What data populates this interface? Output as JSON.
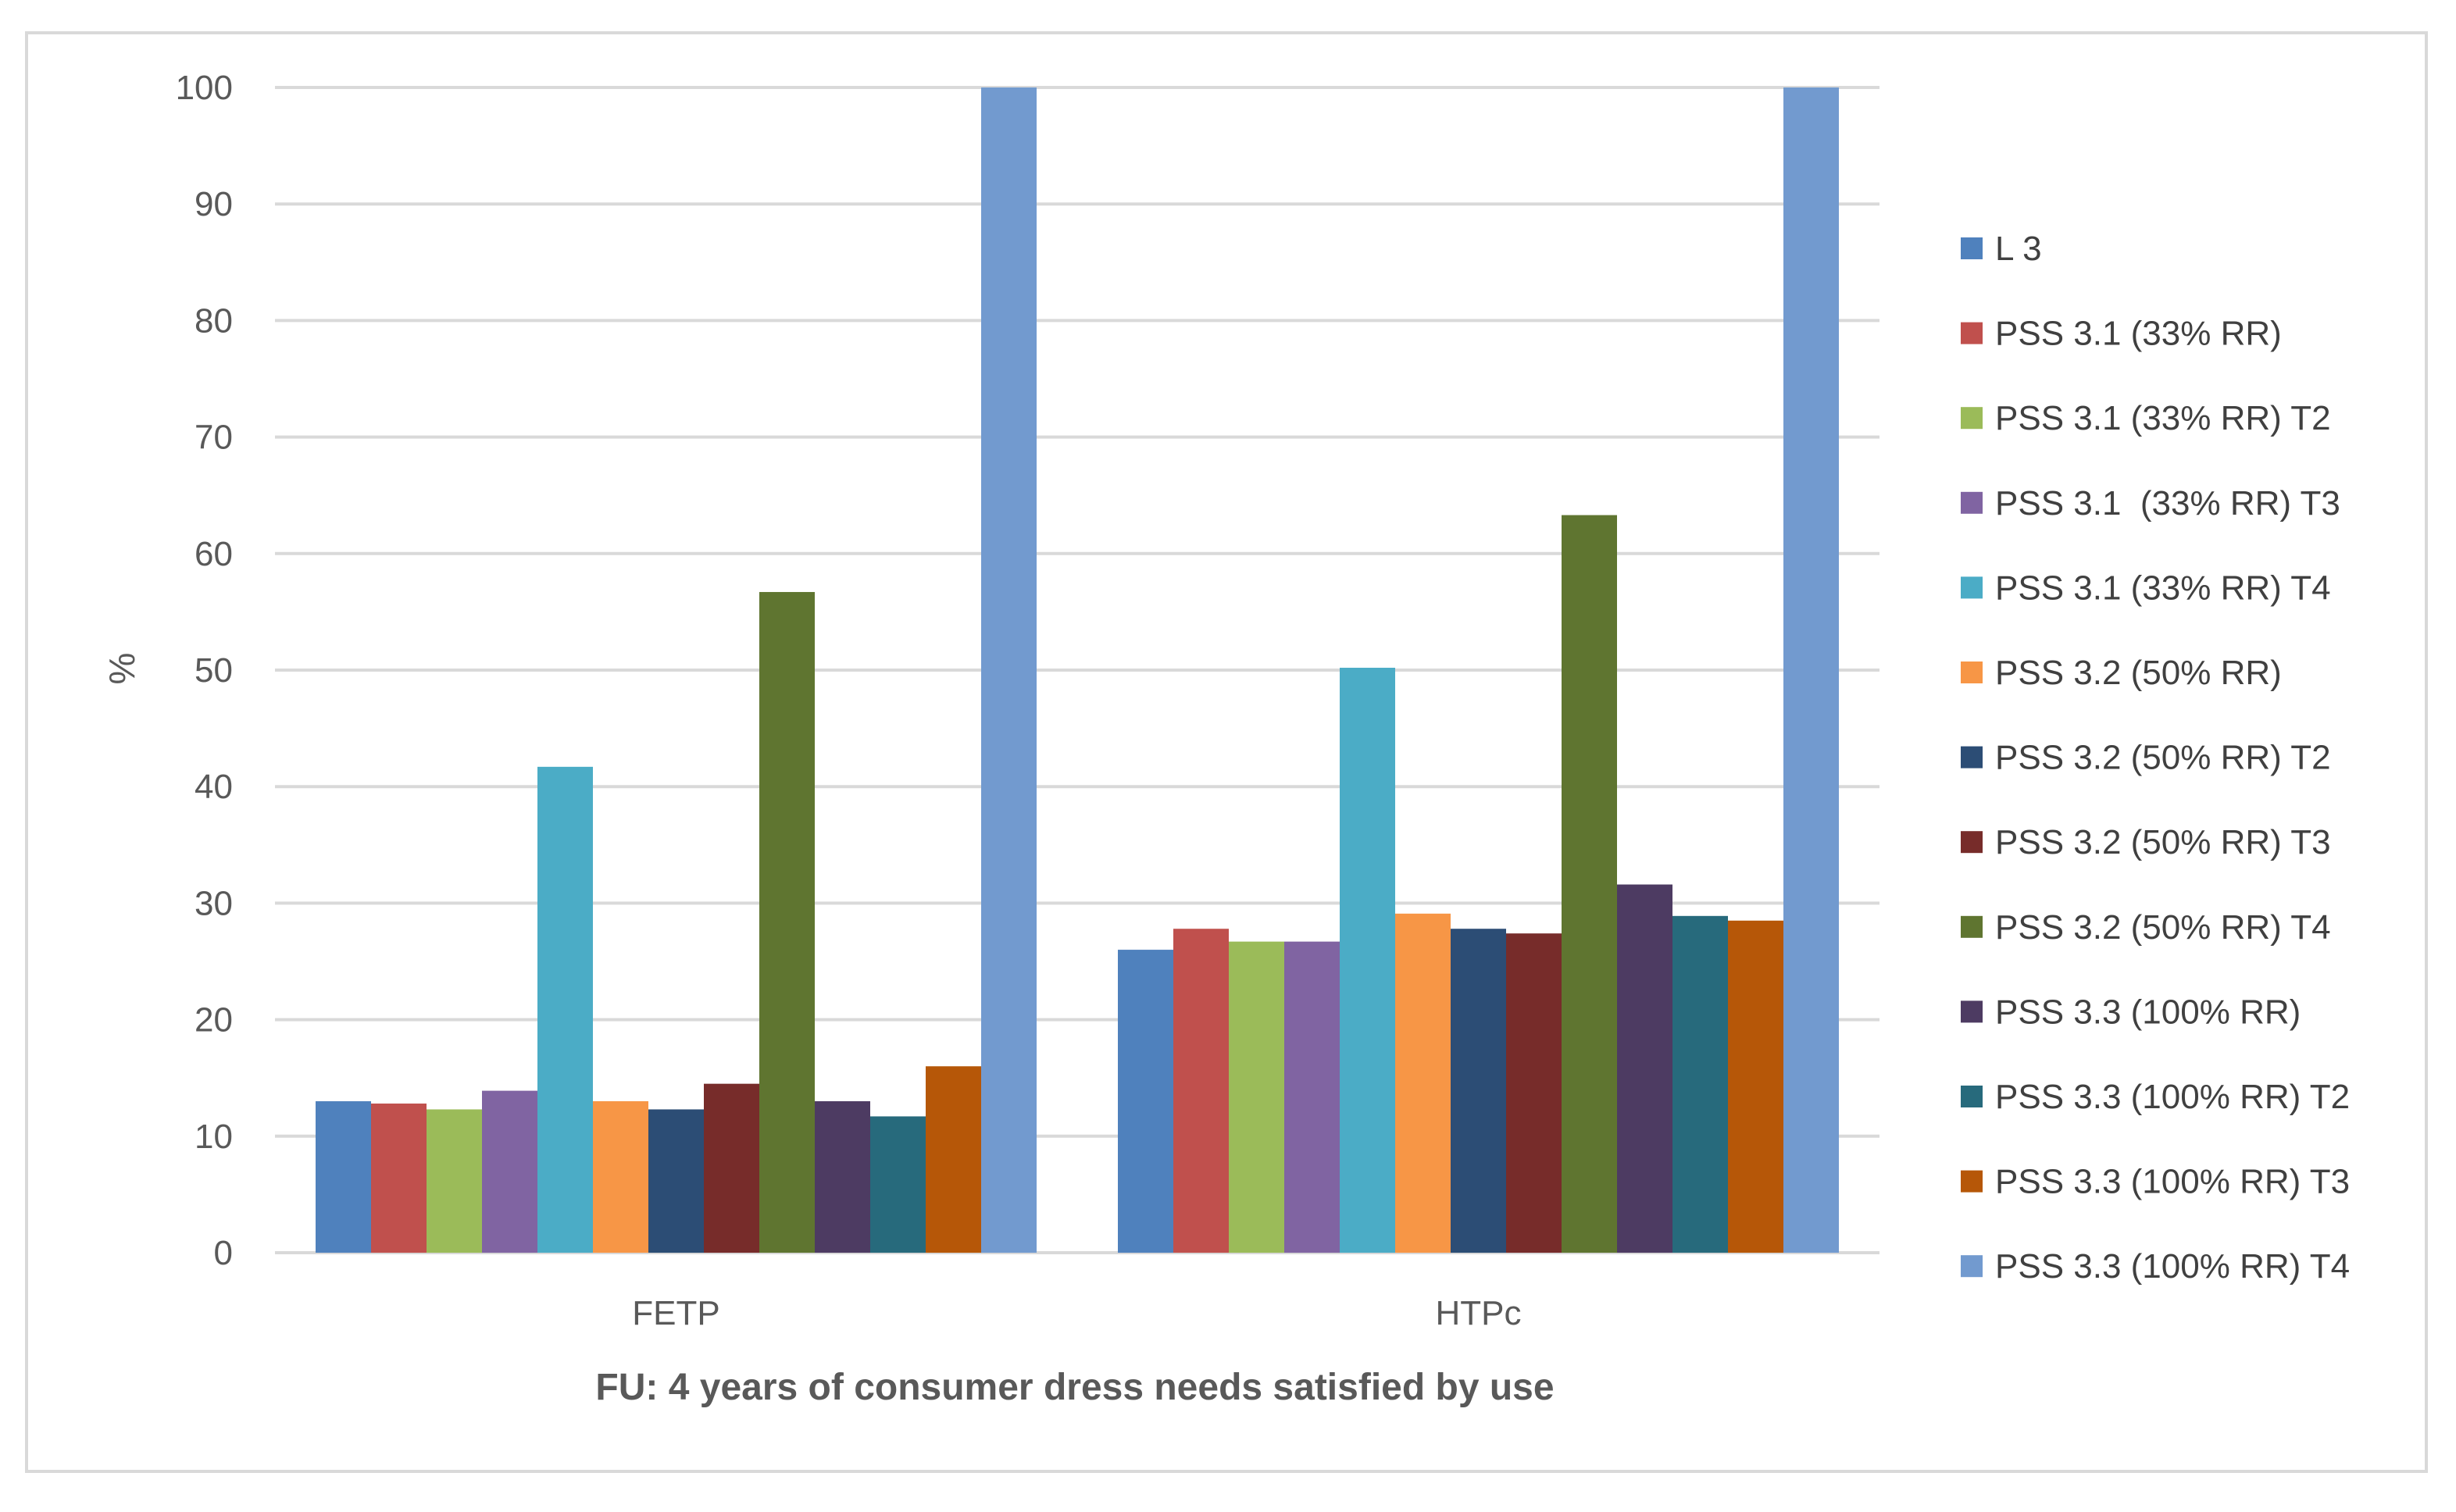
{
  "chart_data": {
    "type": "bar",
    "title": "",
    "xlabel": "FU: 4 years of consumer dress needs satisfied by use",
    "ylabel": "%",
    "ylim": [
      0,
      100
    ],
    "yticks": [
      0,
      10,
      20,
      30,
      40,
      50,
      60,
      70,
      80,
      90,
      100
    ],
    "grid": true,
    "legend_position": "right",
    "categories": [
      "FETP",
      "HTPc"
    ],
    "series": [
      {
        "name": "L 3",
        "color": "#4F81BD",
        "values": [
          13,
          26
        ]
      },
      {
        "name": "PSS 3.1 (33% RR)",
        "color": "#C0504D",
        "values": [
          12.8,
          27.8
        ]
      },
      {
        "name": "PSS 3.1 (33% RR) T2",
        "color": "#9BBB59",
        "values": [
          12.3,
          26.7
        ]
      },
      {
        "name": "PSS 3.1  (33% RR) T3",
        "color": "#8064A2",
        "values": [
          13.9,
          26.7
        ]
      },
      {
        "name": "PSS 3.1 (33% RR) T4",
        "color": "#4BACC6",
        "values": [
          41.7,
          50.2
        ]
      },
      {
        "name": "PSS 3.2 (50% RR)",
        "color": "#F79646",
        "values": [
          13,
          29.1
        ]
      },
      {
        "name": "PSS 3.2 (50% RR) T2",
        "color": "#2C4D75",
        "values": [
          12.3,
          27.8
        ]
      },
      {
        "name": "PSS 3.2 (50% RR) T3",
        "color": "#772C2A",
        "values": [
          14.5,
          27.4
        ]
      },
      {
        "name": "PSS 3.2 (50% RR) T4",
        "color": "#5F7530",
        "values": [
          56.7,
          63.3
        ]
      },
      {
        "name": "PSS 3.3 (100% RR)",
        "color": "#4D3B62",
        "values": [
          13,
          31.6
        ]
      },
      {
        "name": "PSS 3.3 (100% RR) T2",
        "color": "#276A7C",
        "values": [
          11.7,
          28.9
        ]
      },
      {
        "name": "PSS 3.3 (100% RR) T3",
        "color": "#B65708",
        "values": [
          16,
          28.5
        ]
      },
      {
        "name": "PSS 3.3 (100% RR) T4",
        "color": "#729ACF",
        "values": [
          100,
          100
        ]
      }
    ]
  }
}
